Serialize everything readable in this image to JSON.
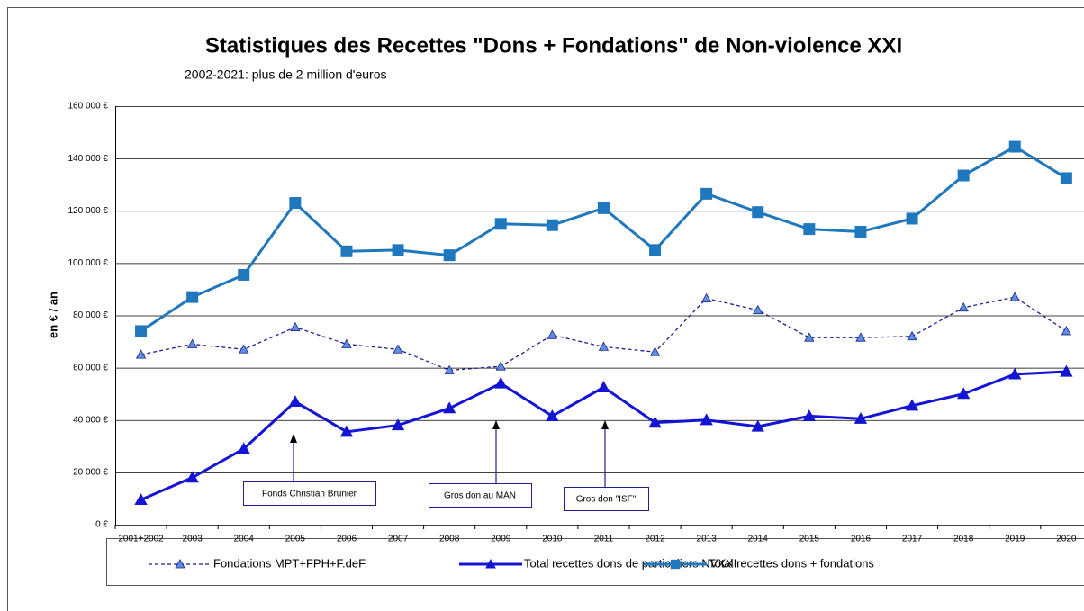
{
  "chart_data": {
    "type": "line",
    "title": "Statistiques des Recettes \"Dons + Fondations\" de Non-violence XXI",
    "subtitle": "2002-2021: plus de 2 million d'euros",
    "y_label": "en € / an",
    "categories": [
      "2001+2002",
      "2003",
      "2004",
      "2005",
      "2006",
      "2007",
      "2008",
      "2009",
      "2010",
      "2011",
      "2012",
      "2013",
      "2014",
      "2015",
      "2016",
      "2017",
      "2018",
      "2019",
      "2020"
    ],
    "series": [
      {
        "name": "Fondations MPT+FPH+F.deF.",
        "color": "#1f1f8f",
        "marker": "triangle",
        "dashed": true,
        "values": [
          65000,
          69000,
          67000,
          75500,
          69000,
          67000,
          59000,
          60500,
          72500,
          68000,
          66000,
          86500,
          82000,
          71500,
          71500,
          72000,
          83000,
          87000,
          74000
        ]
      },
      {
        "name": "Total recettes dons de particuliers NVXXI",
        "color": "#1414d4",
        "marker": "triangle",
        "dashed": false,
        "values": [
          9500,
          18000,
          29000,
          47000,
          35500,
          38000,
          44500,
          54000,
          41500,
          52500,
          39000,
          40000,
          37500,
          41500,
          40500,
          45500,
          50000,
          57500,
          58500
        ]
      },
      {
        "name": "Total recettes dons + fondations",
        "color": "#1f77be",
        "marker": "square",
        "dashed": false,
        "values": [
          74000,
          87000,
          95500,
          123000,
          104500,
          105000,
          103000,
          115000,
          114500,
          121000,
          105000,
          126500,
          119500,
          113000,
          112000,
          117000,
          133500,
          144500,
          132500
        ]
      }
    ],
    "ylim": [
      0,
      160000
    ],
    "yticks": [
      {
        "value": 0,
        "label": "0 €"
      },
      {
        "value": 20000,
        "label": "20 000 €"
      },
      {
        "value": 40000,
        "label": "40 000 €"
      },
      {
        "value": 60000,
        "label": "60 000 €"
      },
      {
        "value": 80000,
        "label": "80 000 €"
      },
      {
        "value": 100000,
        "label": "100 000 €"
      },
      {
        "value": 120000,
        "label": "120 000 €"
      },
      {
        "value": 140000,
        "label": "140 000 €"
      },
      {
        "value": 160000,
        "label": "160 000 €"
      }
    ],
    "grid": true,
    "legend": "bottom",
    "annotations": [
      "Fonds Christian Brunier",
      "Gros don au MAN",
      "Gros don \"ISF\""
    ]
  }
}
